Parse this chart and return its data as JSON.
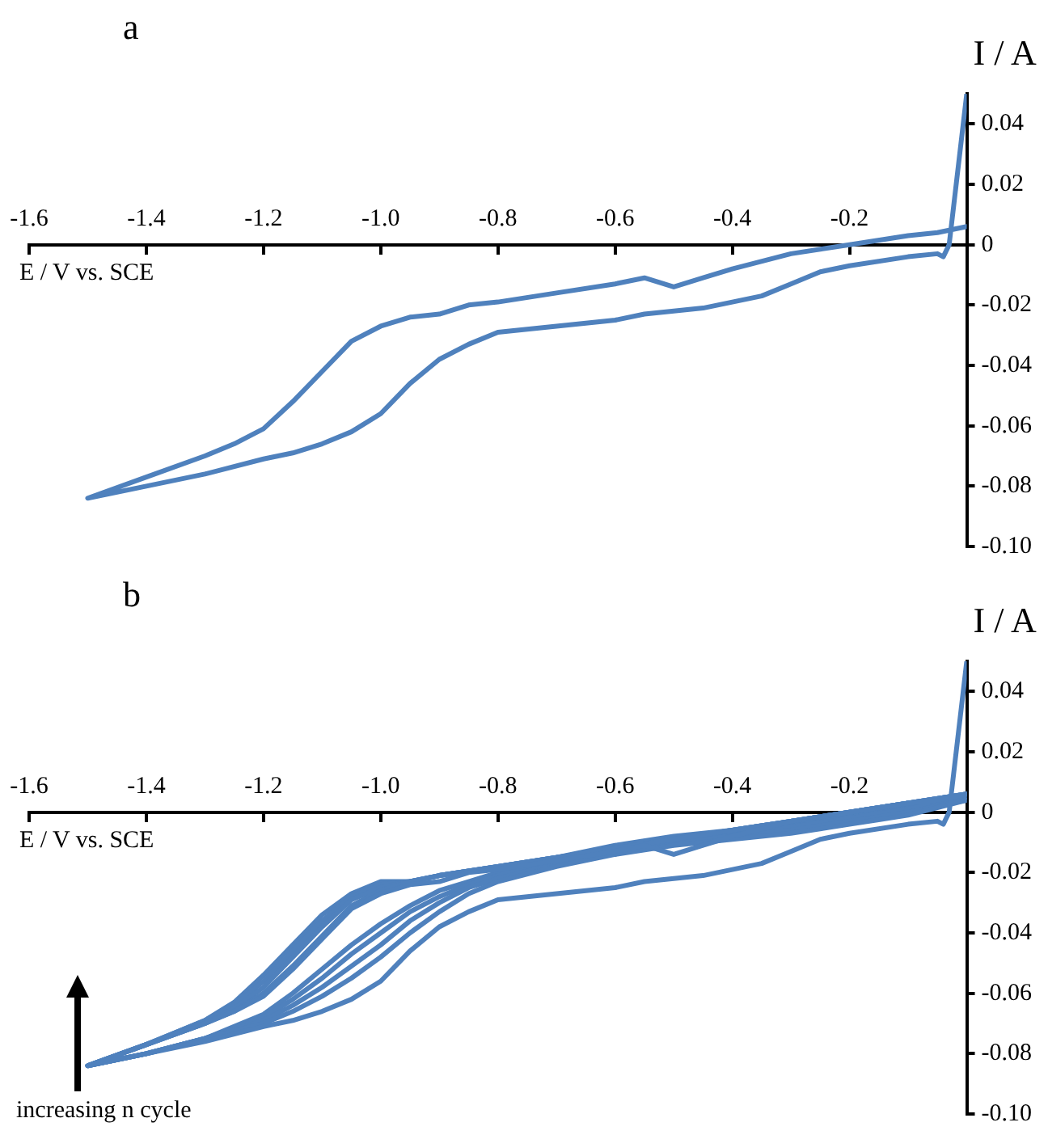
{
  "chart_data": [
    {
      "type": "line",
      "title": "a",
      "xlabel": "E / V vs. SCE",
      "ylabel": "I / A",
      "xlim": [
        -1.6,
        0
      ],
      "ylim": [
        -0.1,
        0.05
      ],
      "xticks": [
        -1.6,
        -1.4,
        -1.2,
        {
          "value": -1.0,
          "label": "-1.0"
        },
        -0.8,
        -0.6,
        -0.4,
        -0.2
      ],
      "yticks": [
        {
          "value": -0.1,
          "label": "-0.10"
        },
        -0.08,
        -0.06,
        -0.04,
        -0.02,
        0,
        0.02,
        0.04
      ],
      "series": [
        {
          "color": "#4f81bd",
          "x": [
            0,
            -0.05,
            -0.1,
            -0.2,
            -0.3,
            -0.4,
            -0.45,
            -0.5,
            -0.55,
            -0.6,
            -0.7,
            -0.8,
            -0.85,
            -0.9,
            -0.95,
            -1.0,
            -1.05,
            -1.1,
            -1.15,
            -1.2,
            -1.25,
            -1.3,
            -1.4,
            -1.5,
            -1.4,
            -1.3,
            -1.2,
            -1.15,
            -1.1,
            -1.05,
            -1.0,
            -0.95,
            -0.9,
            -0.85,
            -0.8,
            -0.7,
            -0.6,
            -0.55,
            -0.45,
            -0.4,
            -0.35,
            -0.3,
            -0.25,
            -0.2,
            -0.1,
            -0.05,
            -0.04,
            -0.03,
            0
          ],
          "values": [
            0.006,
            0.004,
            0.003,
            0.0,
            -0.003,
            -0.008,
            -0.011,
            -0.014,
            -0.011,
            -0.013,
            -0.016,
            -0.019,
            -0.02,
            -0.023,
            -0.024,
            -0.027,
            -0.032,
            -0.042,
            -0.052,
            -0.061,
            -0.066,
            -0.07,
            -0.077,
            -0.084,
            -0.08,
            -0.076,
            -0.071,
            -0.069,
            -0.066,
            -0.062,
            -0.056,
            -0.046,
            -0.038,
            -0.033,
            -0.029,
            -0.027,
            -0.025,
            -0.023,
            -0.021,
            -0.019,
            -0.017,
            -0.013,
            -0.009,
            -0.007,
            -0.004,
            -0.003,
            -0.004,
            0.0,
            0.05
          ]
        }
      ]
    },
    {
      "type": "line",
      "title": "b",
      "xlabel": "E / V vs. SCE",
      "ylabel": "I / A",
      "xlim": [
        -1.6,
        0
      ],
      "ylim": [
        -0.1,
        0.05
      ],
      "xticks": [
        -1.6,
        -1.4,
        -1.2,
        {
          "value": -1.0,
          "label": "-1.0"
        },
        -0.8,
        -0.6,
        -0.4,
        -0.2
      ],
      "yticks": [
        {
          "value": -0.1,
          "label": "-0.10"
        },
        -0.08,
        -0.06,
        -0.04,
        -0.02,
        0,
        0.02,
        0.04
      ],
      "annotations": [
        "increasing n cycle"
      ],
      "series": [
        {
          "color": "#4f81bd",
          "x": [
            0,
            -0.05,
            -0.1,
            -0.2,
            -0.3,
            -0.4,
            -0.45,
            -0.5,
            -0.55,
            -0.6,
            -0.7,
            -0.8,
            -0.85,
            -0.9,
            -0.95,
            -1.0,
            -1.05,
            -1.1,
            -1.15,
            -1.2,
            -1.25,
            -1.3,
            -1.4,
            -1.5,
            -1.4,
            -1.3,
            -1.2,
            -1.15,
            -1.1,
            -1.05,
            -1.0,
            -0.95,
            -0.9,
            -0.85,
            -0.8,
            -0.7,
            -0.6,
            -0.55,
            -0.45,
            -0.4,
            -0.35,
            -0.3,
            -0.25,
            -0.2,
            -0.1,
            -0.05,
            -0.04,
            -0.03,
            0
          ],
          "values": [
            0.006,
            0.004,
            0.003,
            0.0,
            -0.003,
            -0.008,
            -0.011,
            -0.014,
            -0.011,
            -0.013,
            -0.016,
            -0.019,
            -0.02,
            -0.023,
            -0.024,
            -0.027,
            -0.032,
            -0.042,
            -0.052,
            -0.061,
            -0.066,
            -0.07,
            -0.077,
            -0.084,
            -0.08,
            -0.076,
            -0.071,
            -0.069,
            -0.066,
            -0.062,
            -0.056,
            -0.046,
            -0.038,
            -0.033,
            -0.029,
            -0.027,
            -0.025,
            -0.023,
            -0.021,
            -0.019,
            -0.017,
            -0.013,
            -0.009,
            -0.007,
            -0.004,
            -0.003,
            -0.004,
            0.0,
            0.05
          ]
        },
        {
          "color": "#4f81bd",
          "x": [
            0,
            -0.1,
            -0.2,
            -0.3,
            -0.4,
            -0.5,
            -0.6,
            -0.7,
            -0.8,
            -0.9,
            -0.95,
            -1.0,
            -1.05,
            -1.1,
            -1.15,
            -1.2,
            -1.25,
            -1.3,
            -1.4,
            -1.5,
            -1.4,
            -1.3,
            -1.2,
            -1.15,
            -1.1,
            -1.05,
            -1.0,
            -0.95,
            -0.9,
            -0.85,
            -0.8,
            -0.7,
            -0.6,
            -0.5,
            -0.4,
            -0.3,
            -0.2,
            -0.1,
            0
          ],
          "values": [
            0.006,
            0.003,
            0.0,
            -0.003,
            -0.006,
            -0.009,
            -0.012,
            -0.015,
            -0.018,
            -0.021,
            -0.023,
            -0.026,
            -0.031,
            -0.041,
            -0.051,
            -0.06,
            -0.066,
            -0.07,
            -0.077,
            -0.084,
            -0.08,
            -0.075,
            -0.07,
            -0.066,
            -0.061,
            -0.055,
            -0.048,
            -0.04,
            -0.033,
            -0.027,
            -0.023,
            -0.018,
            -0.014,
            -0.011,
            -0.009,
            -0.007,
            -0.004,
            -0.001,
            0.004
          ]
        },
        {
          "color": "#4f81bd",
          "x": [
            0,
            -0.1,
            -0.2,
            -0.3,
            -0.4,
            -0.5,
            -0.6,
            -0.7,
            -0.8,
            -0.9,
            -0.95,
            -1.0,
            -1.05,
            -1.1,
            -1.15,
            -1.2,
            -1.25,
            -1.3,
            -1.4,
            -1.5,
            -1.4,
            -1.3,
            -1.2,
            -1.15,
            -1.1,
            -1.05,
            -1.0,
            -0.95,
            -0.9,
            -0.85,
            -0.8,
            -0.7,
            -0.6,
            -0.5,
            -0.4,
            -0.3,
            -0.2,
            -0.1,
            0
          ],
          "values": [
            0.006,
            0.003,
            0.0,
            -0.003,
            -0.006,
            -0.009,
            -0.012,
            -0.015,
            -0.018,
            -0.021,
            -0.023,
            -0.025,
            -0.029,
            -0.038,
            -0.048,
            -0.058,
            -0.065,
            -0.07,
            -0.077,
            -0.084,
            -0.08,
            -0.075,
            -0.069,
            -0.064,
            -0.058,
            -0.051,
            -0.044,
            -0.036,
            -0.03,
            -0.025,
            -0.022,
            -0.017,
            -0.013,
            -0.01,
            -0.008,
            -0.006,
            -0.003,
            0.0,
            0.004
          ]
        },
        {
          "color": "#4f81bd",
          "x": [
            0,
            -0.1,
            -0.2,
            -0.3,
            -0.4,
            -0.5,
            -0.6,
            -0.7,
            -0.8,
            -0.9,
            -0.95,
            -1.0,
            -1.05,
            -1.1,
            -1.15,
            -1.2,
            -1.25,
            -1.3,
            -1.4,
            -1.5,
            -1.4,
            -1.3,
            -1.2,
            -1.15,
            -1.1,
            -1.05,
            -1.0,
            -0.95,
            -0.9,
            -0.85,
            -0.8,
            -0.7,
            -0.6,
            -0.5,
            -0.4,
            -0.3,
            -0.2,
            -0.1,
            0
          ],
          "values": [
            0.006,
            0.003,
            0.0,
            -0.003,
            -0.006,
            -0.009,
            -0.012,
            -0.015,
            -0.018,
            -0.021,
            -0.023,
            -0.024,
            -0.028,
            -0.036,
            -0.046,
            -0.056,
            -0.064,
            -0.069,
            -0.077,
            -0.084,
            -0.08,
            -0.075,
            -0.068,
            -0.062,
            -0.055,
            -0.047,
            -0.04,
            -0.033,
            -0.028,
            -0.024,
            -0.021,
            -0.016,
            -0.012,
            -0.009,
            -0.007,
            -0.005,
            -0.002,
            0.001,
            0.005
          ]
        },
        {
          "color": "#4f81bd",
          "x": [
            0,
            -0.1,
            -0.2,
            -0.3,
            -0.4,
            -0.5,
            -0.6,
            -0.7,
            -0.8,
            -0.9,
            -0.95,
            -1.0,
            -1.05,
            -1.1,
            -1.15,
            -1.2,
            -1.25,
            -1.3,
            -1.4,
            -1.5,
            -1.4,
            -1.3,
            -1.2,
            -1.15,
            -1.1,
            -1.05,
            -1.0,
            -0.95,
            -0.9,
            -0.85,
            -0.8,
            -0.7,
            -0.6,
            -0.5,
            -0.4,
            -0.3,
            -0.2,
            -0.1,
            0
          ],
          "values": [
            0.006,
            0.003,
            0.0,
            -0.003,
            -0.006,
            -0.009,
            -0.012,
            -0.015,
            -0.018,
            -0.021,
            -0.023,
            -0.023,
            -0.027,
            -0.034,
            -0.044,
            -0.054,
            -0.063,
            -0.069,
            -0.077,
            -0.084,
            -0.08,
            -0.075,
            -0.067,
            -0.06,
            -0.052,
            -0.044,
            -0.037,
            -0.031,
            -0.026,
            -0.023,
            -0.02,
            -0.015,
            -0.011,
            -0.008,
            -0.006,
            -0.004,
            -0.001,
            0.002,
            0.005
          ]
        }
      ]
    }
  ]
}
